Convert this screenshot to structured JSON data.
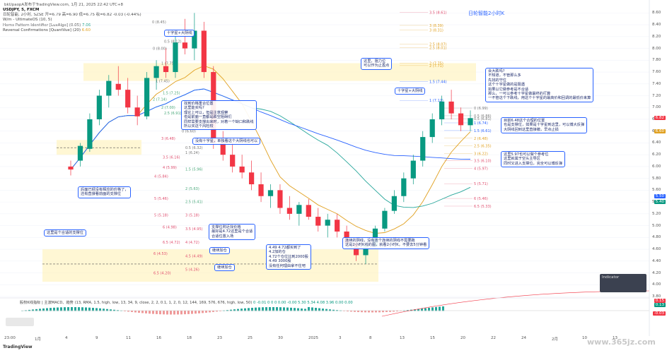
{
  "header": {
    "byline": "bkUpaopA发布于TradingView.com, 1月 21, 2025 22:42 UTC+8",
    "symbol_line": "USDJPY, 5, FXCM",
    "ohlc_line": "日轮智能, 2小时, SZSE 开=6.79 高=6.90 低=6.75 收=6.82 -0.03 (-0.44%)",
    "indicator1": "W/m - UltimateOS (10, 5)",
    "indicator2": "Horns Pattern Identifier [LuxAlgo] (0.05)",
    "indicator2_value": "7.06",
    "indicator3": "Reversal Confirmations [QuantVue] (20)",
    "indicator3_value": "6.60"
  },
  "title_link": "日轮智能2小时K",
  "annotations": [
    {
      "id": "a1",
      "text": "十字星+大阴线"
    },
    {
      "id": "a2",
      "text": "这里，阻力位\n可以作为止盈点"
    },
    {
      "id": "a3",
      "text": "十字星+大阴线"
    },
    {
      "id": "a4",
      "text": "会大跌吗?\n不知道，不管那么多\n先找的守位\n这个十字星做的是阻遇\n如果以它做参考是不合适\n那么，一可以参考十字星做最终的打算\n一不管这个下跌线，用这个十字星的最高价和回调的最低价来算"
    },
    {
      "id": "a5",
      "text": "找到价格重合位置\n这里能买吗?\n理论上可以，但是注意观察\n但是前面一直都是跌空阻碍们\n同样需要支撑出来时，对着一个缺口和跌线\n所以买这个风险较"
    },
    {
      "id": "a6",
      "text": "没有十字星，单独看这个大阴线也可以"
    },
    {
      "id": "a7",
      "text": "目前6.48这个合理的位置\n也是支撑位，如果是十字星到这里，可以博大反弹\n大阴线回到这里直接撤，早点止损"
    },
    {
      "id": "a8",
      "text": "这里5.97也可以做个参考位\n这里就属于空头主导区\n同时又进入支撑位，完全可以博反弹"
    },
    {
      "id": "a9",
      "text": "后面已经没有相应的价格了，\n还有直接看前面的支撑位"
    },
    {
      "id": "a10",
      "text": "这里是个合适的支撑位"
    },
    {
      "id": "a11",
      "text": "支撑位附近找价格\n最好是4.72这里是个合适\n合适位置入场"
    },
    {
      "id": "a12",
      "text": "继续加仓"
    },
    {
      "id": "a13",
      "text": "继续加仓"
    },
    {
      "id": "a14",
      "text": "4.49 4.72都买到了\n4.2加的仓\n4.72个仓位比到2000股\n4.49 3000股\n没有任何理由拿不住吧"
    },
    {
      "id": "a15",
      "text": "连续的阴线，没有连个连续的阴线不需要跑\n这是2小时K线的图，就看2小时K，不要去5分钟看"
    }
  ],
  "fib_levels_left": [
    {
      "ratio": "0",
      "value": "8.00"
    },
    {
      "ratio": "0.5",
      "value": "8.12"
    },
    {
      "ratio": "0",
      "value": "8.45"
    },
    {
      "ratio": "1",
      "value": "7.75"
    },
    {
      "ratio": "1",
      "value": "7.45"
    },
    {
      "ratio": "1.5",
      "value": "7.25"
    },
    {
      "ratio": "2",
      "value": "7.14"
    },
    {
      "ratio": "2",
      "value": "7.00"
    },
    {
      "ratio": "2.5",
      "value": "6.91"
    },
    {
      "ratio": "0",
      "value": "6.60"
    },
    {
      "ratio": "0.5",
      "value": "6.32"
    },
    {
      "ratio": "3",
      "value": "6.48"
    },
    {
      "ratio": "1",
      "value": "6.24"
    },
    {
      "ratio": "3.5",
      "value": "6.16"
    },
    {
      "ratio": "4",
      "value": "5.99"
    },
    {
      "ratio": "1.5",
      "value": "5.96"
    },
    {
      "ratio": "4",
      "value": "5.84"
    },
    {
      "ratio": "2",
      "value": "5.63"
    },
    {
      "ratio": "2.5",
      "value": "5.41"
    },
    {
      "ratio": "5",
      "value": "5.46"
    },
    {
      "ratio": "3",
      "value": "5.18"
    },
    {
      "ratio": "5",
      "value": "5.18"
    },
    {
      "ratio": "6",
      "value": "4.98"
    },
    {
      "ratio": "3.5",
      "value": "4.95"
    },
    {
      "ratio": "6.5",
      "value": "4.72"
    },
    {
      "ratio": "4",
      "value": "4.72"
    },
    {
      "ratio": "4.5",
      "value": "4.49"
    },
    {
      "ratio": "6",
      "value": "4.53"
    },
    {
      "ratio": "5",
      "value": "4.26"
    },
    {
      "ratio": "6.5",
      "value": "4.20"
    }
  ],
  "fib_levels_right": [
    {
      "ratio": "3.5",
      "value": "8.61"
    },
    {
      "ratio": "3",
      "value": "8.39"
    },
    {
      "ratio": "3",
      "value": "8.31"
    },
    {
      "ratio": "2.5",
      "value": "8.07"
    },
    {
      "ratio": "2.5",
      "value": "8.01"
    },
    {
      "ratio": "2",
      "value": "7.71"
    },
    {
      "ratio": "2",
      "value": "7.75"
    },
    {
      "ratio": "1.5",
      "value": "7.44"
    },
    {
      "ratio": "1",
      "value": "7.12"
    },
    {
      "ratio": "0",
      "value": "6.99"
    },
    {
      "ratio": "0.5",
      "value": "6.86"
    },
    {
      "ratio": "0.5",
      "value": "6.81"
    },
    {
      "ratio": "1",
      "value": "6.74"
    },
    {
      "ratio": "1.5",
      "value": "6.61"
    },
    {
      "ratio": "2",
      "value": "6.48"
    },
    {
      "ratio": "2.5",
      "value": "6.35"
    },
    {
      "ratio": "3",
      "value": "6.22"
    },
    {
      "ratio": "3.5",
      "value": "6.10"
    },
    {
      "ratio": "4",
      "value": "5.97"
    },
    {
      "ratio": "5",
      "value": "5.71"
    },
    {
      "ratio": "6",
      "value": "5.46"
    },
    {
      "ratio": "6.5",
      "value": "5.33"
    }
  ],
  "price_axis": [
    "8.60",
    "8.40",
    "8.20",
    "8.00",
    "7.80",
    "7.60",
    "7.40",
    "7.20",
    "7.00",
    "6.80",
    "6.60",
    "6.40",
    "6.20",
    "6.00",
    "5.80",
    "5.60",
    "5.40",
    "5.20",
    "5.00",
    "4.80",
    "4.60",
    "4.40",
    "4.20",
    "4.00",
    "3.80"
  ],
  "price_tags": [
    {
      "value": "6.82",
      "color": "#f23645"
    },
    {
      "value": "6.60",
      "color": "#e0a020"
    },
    {
      "value": "5.50",
      "color": "#2962ff"
    },
    {
      "value": "5.40",
      "color": "#089981"
    },
    {
      "value": "0.15",
      "color": "#f23645"
    },
    {
      "value": "0.13",
      "color": "#089981"
    },
    {
      "value": "-0.03",
      "color": "#f23645"
    }
  ],
  "indicator_panel": {
    "title": "Indicator",
    "line1": "",
    "line2": ""
  },
  "oscillator": {
    "legend": "股权K线指标 | 主波MACD、趋势 (13, RMA, 1.5, high, low, 13, 34, 9, close, 2, 2, 0.1, 1, 2, 0, 12, 144, 169, 576, 676, high, low, 50)",
    "values": "0 -0.01 0 0 0 0.00 -0.00 5.30 5.34 4.08 3.96 0.00 0.00"
  },
  "time_axis": [
    "23:00",
    "1月",
    "4",
    "9",
    "11",
    "16",
    "18",
    "23",
    "25",
    "30",
    "2025",
    "3",
    "8",
    "13",
    "15",
    "20",
    "22",
    "24",
    "2月",
    "10",
    "13"
  ],
  "watermark": "www.365jz.com",
  "tradingview": "TradingView",
  "chart_data": {
    "type": "candlestick",
    "title": "日轮智能2小时K",
    "ylim": [
      3.8,
      8.7
    ],
    "candles": [
      [
        6.0,
        6.1,
        5.85,
        5.95
      ],
      [
        6.1,
        6.4,
        6.0,
        6.35
      ],
      [
        6.3,
        6.9,
        6.25,
        6.8
      ],
      [
        6.8,
        7.3,
        6.7,
        7.2
      ],
      [
        7.2,
        7.55,
        7.0,
        7.45
      ],
      [
        7.4,
        7.7,
        7.2,
        7.3
      ],
      [
        7.3,
        7.5,
        6.9,
        7.0
      ],
      [
        7.0,
        7.2,
        6.7,
        6.85
      ],
      [
        6.85,
        7.6,
        6.8,
        7.5
      ],
      [
        7.5,
        7.8,
        7.3,
        7.7
      ],
      [
        7.7,
        8.0,
        7.5,
        7.6
      ],
      [
        7.6,
        8.2,
        7.5,
        8.1
      ],
      [
        8.1,
        8.5,
        7.9,
        8.0
      ],
      [
        8.0,
        8.6,
        7.8,
        8.3
      ],
      [
        8.3,
        8.45,
        7.5,
        7.6
      ],
      [
        7.6,
        7.7,
        6.3,
        6.4
      ],
      [
        6.4,
        6.6,
        6.1,
        6.2
      ],
      [
        6.2,
        6.4,
        5.9,
        6.0
      ],
      [
        6.0,
        6.2,
        5.8,
        5.9
      ],
      [
        5.9,
        6.1,
        5.6,
        5.7
      ],
      [
        5.7,
        5.9,
        5.4,
        5.5
      ],
      [
        5.5,
        5.7,
        5.3,
        5.6
      ],
      [
        5.6,
        5.7,
        5.2,
        5.3
      ],
      [
        5.3,
        5.5,
        5.1,
        5.2
      ],
      [
        5.2,
        5.4,
        5.0,
        5.35
      ],
      [
        5.35,
        5.45,
        5.1,
        5.15
      ],
      [
        5.15,
        5.3,
        4.9,
        5.0
      ],
      [
        5.0,
        5.2,
        4.8,
        5.1
      ],
      [
        5.1,
        5.2,
        4.8,
        4.9
      ],
      [
        4.9,
        5.0,
        4.6,
        4.7
      ],
      [
        4.7,
        4.8,
        4.4,
        4.5
      ],
      [
        4.5,
        4.7,
        4.35,
        4.65
      ],
      [
        4.65,
        5.0,
        4.6,
        4.95
      ],
      [
        4.95,
        5.3,
        4.9,
        5.25
      ],
      [
        5.25,
        5.6,
        5.2,
        5.5
      ],
      [
        5.5,
        5.9,
        5.4,
        5.8
      ],
      [
        5.8,
        6.2,
        5.7,
        6.1
      ],
      [
        6.1,
        6.6,
        6.0,
        6.5
      ],
      [
        6.5,
        6.9,
        6.4,
        6.8
      ],
      [
        6.8,
        7.2,
        6.7,
        7.1
      ],
      [
        7.1,
        7.3,
        6.8,
        6.9
      ],
      [
        6.9,
        7.0,
        6.6,
        6.7
      ],
      [
        6.7,
        6.95,
        6.6,
        6.82
      ]
    ],
    "moving_averages": [
      "orange",
      "teal",
      "blue"
    ]
  }
}
